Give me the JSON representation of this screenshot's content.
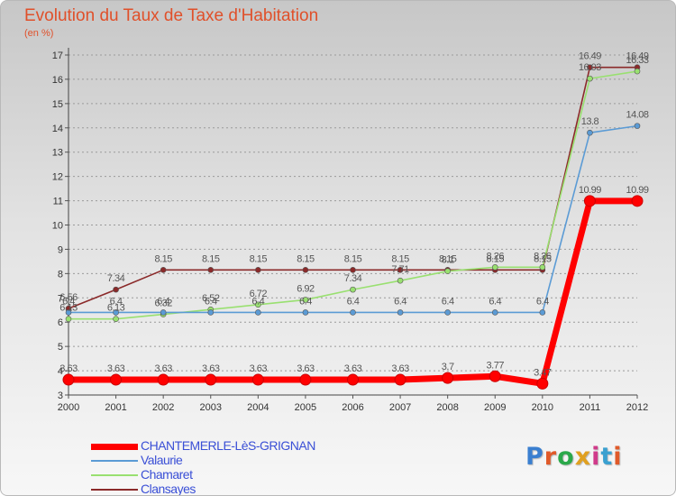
{
  "title": "Evolution du Taux de Taxe d'Habitation",
  "unit_label": "(en %)",
  "logo": {
    "text": "Proxiti",
    "letter_colors": [
      "#3a7fd0",
      "#e05a2a",
      "#2aa84a",
      "#e0a020",
      "#d03a8a",
      "#3aa0d0",
      "#e05a2a"
    ]
  },
  "chart_data": {
    "type": "line",
    "title": "Evolution du Taux de Taxe d'Habitation",
    "ylabel": "(en %)",
    "xlabel": "",
    "x": [
      "2000",
      "2001",
      "2002",
      "2003",
      "2004",
      "2005",
      "2006",
      "2007",
      "2008",
      "2009",
      "2010",
      "2011",
      "2012"
    ],
    "ylim": [
      3,
      17
    ],
    "yticks": [
      "3",
      "4",
      "5",
      "6",
      "7",
      "8",
      "9",
      "10",
      "11",
      "12",
      "13",
      "14",
      "15",
      "16",
      "17"
    ],
    "grid": "horizontal dashed",
    "legend_position": "bottom-left",
    "series": [
      {
        "name": "CHANTEMERLE-LèS-GRIGNAN",
        "color": "#ff0000",
        "values": [
          3.63,
          3.63,
          3.63,
          3.63,
          3.63,
          3.63,
          3.63,
          3.63,
          3.7,
          3.77,
          3.47,
          10.99,
          10.99
        ],
        "labels": [
          "3.63",
          "3.63",
          "3.63",
          "3.63",
          "3.63",
          "3.63",
          "3.63",
          "3.63",
          "3.7",
          "3.77",
          "3.47",
          "10.99",
          "10.99"
        ]
      },
      {
        "name": "Valaurie",
        "color": "#5b9bd5",
        "values": [
          6.4,
          6.4,
          6.4,
          6.4,
          6.4,
          6.4,
          6.4,
          6.4,
          6.4,
          6.4,
          6.4,
          13.8,
          14.08
        ],
        "labels": [
          "6.4",
          "6.4",
          "6.4",
          "6.4",
          "6.4",
          "6.4",
          "6.4",
          "6.4",
          "6.4",
          "6.4",
          "6.4",
          "13.8",
          "14.08"
        ]
      },
      {
        "name": "Chamaret",
        "color": "#99e070",
        "values": [
          6.13,
          6.13,
          6.32,
          6.52,
          6.72,
          6.92,
          7.34,
          7.71,
          8.1,
          8.26,
          8.26,
          16.03,
          16.33
        ],
        "labels": [
          "6.13",
          "6.13",
          "6.32",
          "6.52",
          "6.72",
          "6.92",
          "7.34",
          "7.71",
          "8.1",
          "8.26",
          "8.26",
          "16.03",
          "16.33"
        ]
      },
      {
        "name": "Clansayes",
        "color": "#8b2a2a",
        "values": [
          6.56,
          7.34,
          8.15,
          8.15,
          8.15,
          8.15,
          8.15,
          8.15,
          8.15,
          8.15,
          8.15,
          16.49,
          16.49
        ],
        "labels": [
          "6.56",
          "7.34",
          "8.15",
          "8.15",
          "8.15",
          "8.15",
          "8.15",
          "8.15",
          "8.15",
          "8.15",
          "8.15",
          "16.49",
          "16.49"
        ]
      }
    ]
  }
}
